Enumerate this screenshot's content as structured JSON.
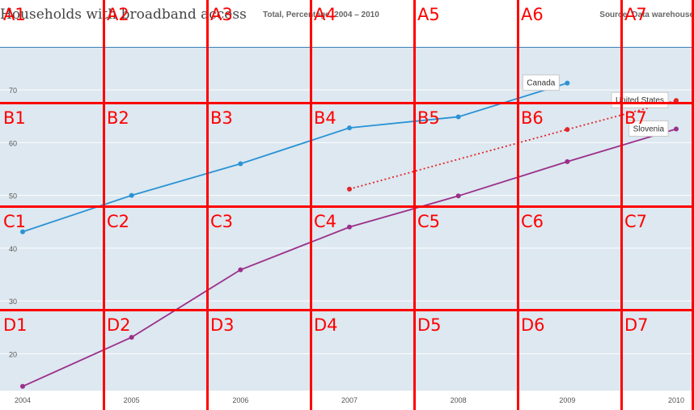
{
  "header": {
    "title": "Households with broadband access",
    "subtitle": "Total, Percentage, 2004 – 2010",
    "source": "Source: Data warehouse"
  },
  "chart_data": {
    "type": "line",
    "title": "Households with broadband access",
    "subtitle": "Total, Percentage, 2004 – 2010",
    "x": [
      2004,
      2005,
      2006,
      2007,
      2008,
      2009,
      2010
    ],
    "x_tick_labels": [
      "2004",
      "2005",
      "2006",
      "2007",
      "2008",
      "2009",
      "2010"
    ],
    "y_ticks": [
      20,
      30,
      40,
      50,
      60,
      70
    ],
    "y_tick_labels": [
      "20",
      "30",
      "40",
      "50",
      "60",
      "70"
    ],
    "ylim": [
      13,
      78
    ],
    "grid": true,
    "series": [
      {
        "name": "Canada",
        "color": "#2a93d5",
        "style": "solid",
        "x": [
          2004,
          2005,
          2006,
          2007,
          2008,
          2009
        ],
        "values": [
          43.1,
          50.0,
          56.0,
          62.8,
          64.9,
          71.3
        ]
      },
      {
        "name": "United States",
        "color": "#e3242b",
        "style": "dotted",
        "x": [
          2007,
          2009,
          2010
        ],
        "values": [
          51.2,
          62.5,
          68.0
        ]
      },
      {
        "name": "Slovenia",
        "color": "#9b2f8a",
        "style": "solid",
        "x": [
          2004,
          2005,
          2006,
          2007,
          2008,
          2009,
          2010
        ],
        "values": [
          13.8,
          23.1,
          35.9,
          44.0,
          49.9,
          56.4,
          62.6
        ]
      }
    ]
  },
  "overlay": {
    "color": "#ff0000",
    "columns": [
      "1",
      "2",
      "3",
      "4",
      "5",
      "6",
      "7"
    ],
    "rows": [
      "A",
      "B",
      "C",
      "D"
    ],
    "labels": [
      [
        "A1",
        "A2",
        "A3",
        "A4",
        "A5",
        "A6",
        "A7"
      ],
      [
        "B1",
        "B2",
        "B3",
        "B4",
        "B5",
        "B6",
        "B7"
      ],
      [
        "C1",
        "C2",
        "C3",
        "C4",
        "C5",
        "C6",
        "C7"
      ],
      [
        "D1",
        "D2",
        "D3",
        "D4",
        "D5",
        "D6",
        "D7"
      ]
    ]
  }
}
